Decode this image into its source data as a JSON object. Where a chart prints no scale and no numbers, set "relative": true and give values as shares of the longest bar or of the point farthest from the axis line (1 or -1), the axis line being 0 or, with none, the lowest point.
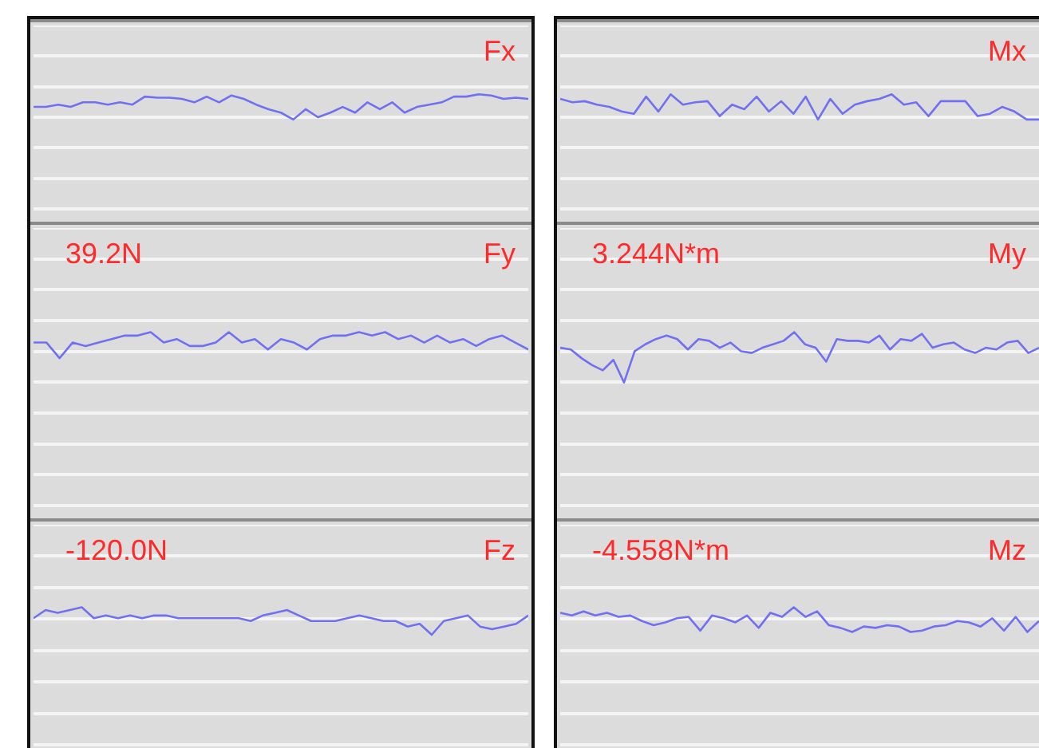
{
  "chart_data": [
    {
      "type": "line",
      "title": "Fx",
      "relative": true,
      "grid": "y",
      "categories": [
        null,
        null,
        null,
        null,
        null,
        null,
        null,
        null,
        null,
        null,
        null,
        null,
        null,
        null,
        null,
        null,
        null,
        null,
        null,
        null,
        null,
        null,
        null,
        null,
        null,
        null,
        null,
        null,
        null,
        null,
        null,
        null,
        null,
        null,
        null,
        null,
        null,
        null,
        null,
        null,
        null
      ],
      "series": [
        {
          "color": "#7070f0",
          "values": [
            0.89,
            0.89,
            0.91,
            0.89,
            0.93,
            0.93,
            0.91,
            0.93,
            0.91,
            0.98,
            0.97,
            0.97,
            0.96,
            0.93,
            0.98,
            0.93,
            0.99,
            0.96,
            0.91,
            0.87,
            0.84,
            0.78,
            0.87,
            0.8,
            0.84,
            0.89,
            0.84,
            0.93,
            0.87,
            0.93,
            0.84,
            0.89,
            0.91,
            0.93,
            0.98,
            0.98,
            1,
            0.99,
            0.96,
            0.97,
            0.96
          ]
        }
      ]
    },
    {
      "type": "line",
      "title": "Mx",
      "relative": true,
      "grid": "y",
      "categories": [
        null,
        null,
        null,
        null,
        null,
        null,
        null,
        null,
        null,
        null,
        null,
        null,
        null,
        null,
        null,
        null,
        null,
        null,
        null,
        null,
        null,
        null,
        null,
        null,
        null,
        null,
        null,
        null,
        null,
        null,
        null,
        null,
        null,
        null,
        null,
        null,
        null,
        null,
        null,
        null
      ],
      "series": [
        {
          "color": "#7070f0",
          "values": [
            0.96,
            0.93,
            0.94,
            0.91,
            0.89,
            0.85,
            0.83,
            0.98,
            0.85,
            1,
            0.91,
            0.93,
            0.94,
            0.81,
            0.91,
            0.87,
            0.98,
            0.85,
            0.94,
            0.83,
            0.98,
            0.78,
            0.96,
            0.83,
            0.91,
            0.94,
            0.96,
            1,
            0.91,
            0.93,
            0.81,
            0.94,
            0.94,
            0.94,
            0.81,
            0.83,
            0.89,
            0.85,
            0.78,
            0.78
          ]
        }
      ]
    },
    {
      "type": "line",
      "title": "Fy",
      "annotations": [
        "39.2N"
      ],
      "relative": true,
      "grid": "y",
      "categories": [
        null,
        null,
        null,
        null,
        null,
        null,
        null,
        null,
        null,
        null,
        null,
        null,
        null,
        null,
        null,
        null,
        null,
        null,
        null,
        null,
        null,
        null,
        null,
        null,
        null,
        null,
        null,
        null,
        null,
        null,
        null,
        null,
        null,
        null,
        null,
        null,
        null,
        null,
        null
      ],
      "series": [
        {
          "color": "#7070f0",
          "values": [
            0.94,
            0.94,
            0.85,
            0.94,
            0.92,
            0.94,
            0.96,
            0.98,
            0.98,
            1,
            0.94,
            0.96,
            0.92,
            0.92,
            0.94,
            1,
            0.94,
            0.96,
            0.9,
            0.96,
            0.94,
            0.9,
            0.96,
            0.98,
            0.98,
            1,
            0.98,
            1,
            0.96,
            0.98,
            0.94,
            0.98,
            0.94,
            0.96,
            0.92,
            0.96,
            0.98,
            0.94,
            0.9
          ]
        }
      ]
    },
    {
      "type": "line",
      "title": "My",
      "annotations": [
        "3.244N*m"
      ],
      "relative": true,
      "grid": "y",
      "categories": [
        null,
        null,
        null,
        null,
        null,
        null,
        null,
        null,
        null,
        null,
        null,
        null,
        null,
        null,
        null,
        null,
        null,
        null,
        null,
        null,
        null,
        null,
        null,
        null,
        null,
        null,
        null,
        null,
        null,
        null,
        null,
        null,
        null,
        null,
        null,
        null,
        null,
        null,
        null,
        null,
        null,
        null,
        null,
        null,
        null,
        null
      ],
      "series": [
        {
          "color": "#7070f0",
          "values": [
            0.91,
            0.9,
            0.85,
            0.81,
            0.78,
            0.84,
            0.71,
            0.89,
            0.93,
            0.96,
            0.98,
            0.96,
            0.9,
            0.96,
            0.95,
            0.91,
            0.94,
            0.89,
            0.88,
            0.91,
            0.93,
            0.95,
            1,
            0.93,
            0.91,
            0.83,
            0.96,
            0.95,
            0.95,
            0.94,
            0.98,
            0.9,
            0.96,
            0.95,
            0.99,
            0.91,
            0.93,
            0.94,
            0.9,
            0.88,
            0.91,
            0.9,
            0.94,
            0.95,
            0.88,
            0.91
          ]
        }
      ]
    },
    {
      "type": "line",
      "title": "Fz",
      "annotations": [
        "-120.0N"
      ],
      "relative": true,
      "grid": "y",
      "categories": [
        null,
        null,
        null,
        null,
        null,
        null,
        null,
        null,
        null,
        null,
        null,
        null,
        null,
        null,
        null,
        null,
        null,
        null,
        null,
        null,
        null,
        null,
        null,
        null,
        null,
        null,
        null,
        null,
        null,
        null,
        null,
        null,
        null,
        null,
        null,
        null,
        null,
        null,
        null,
        null,
        null,
        null
      ],
      "series": [
        {
          "color": "#7070f0",
          "values": [
            0.92,
            0.98,
            0.96,
            0.98,
            1,
            0.92,
            0.94,
            0.92,
            0.94,
            0.92,
            0.94,
            0.94,
            0.92,
            0.92,
            0.92,
            0.92,
            0.92,
            0.92,
            0.9,
            0.94,
            0.96,
            0.98,
            0.94,
            0.9,
            0.9,
            0.9,
            0.92,
            0.94,
            0.92,
            0.9,
            0.9,
            0.86,
            0.88,
            0.8,
            0.9,
            0.92,
            0.94,
            0.86,
            0.84,
            0.86,
            0.88,
            0.94
          ]
        }
      ]
    },
    {
      "type": "line",
      "title": "Mz",
      "annotations": [
        "-4.558N*m"
      ],
      "relative": true,
      "grid": "y",
      "categories": [
        null,
        null,
        null,
        null,
        null,
        null,
        null,
        null,
        null,
        null,
        null,
        null,
        null,
        null,
        null,
        null,
        null,
        null,
        null,
        null,
        null,
        null,
        null,
        null,
        null,
        null,
        null,
        null,
        null,
        null,
        null,
        null,
        null,
        null,
        null,
        null,
        null,
        null,
        null,
        null,
        null,
        null
      ],
      "series": [
        {
          "color": "#7070f0",
          "values": [
            0.96,
            0.94,
            0.97,
            0.94,
            0.96,
            0.93,
            0.94,
            0.9,
            0.87,
            0.89,
            0.92,
            0.93,
            0.83,
            0.94,
            0.92,
            0.89,
            0.94,
            0.85,
            0.96,
            0.93,
            1,
            0.93,
            0.97,
            0.87,
            0.85,
            0.82,
            0.86,
            0.85,
            0.87,
            0.86,
            0.82,
            0.83,
            0.86,
            0.87,
            0.9,
            0.89,
            0.86,
            0.92,
            0.83,
            0.93,
            0.82,
            0.9
          ]
        }
      ]
    }
  ]
}
